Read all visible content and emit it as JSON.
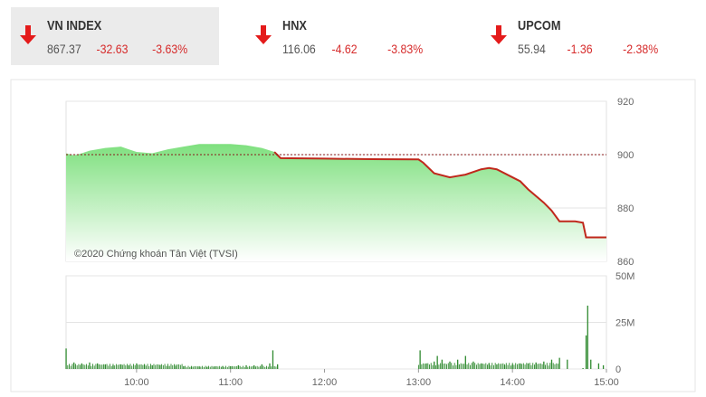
{
  "indices": [
    {
      "name": "VN INDEX",
      "value": "867.37",
      "change": "-32.63",
      "percent": "-3.63%",
      "direction": "down"
    },
    {
      "name": "HNX",
      "value": "116.06",
      "change": "-4.62",
      "percent": "-3.83%",
      "direction": "down"
    },
    {
      "name": "UPCOM",
      "value": "55.94",
      "change": "-1.36",
      "percent": "-2.38%",
      "direction": "down"
    }
  ],
  "colors": {
    "down": "#e41b1b",
    "area": "#7fe07f",
    "line": "#c0281c",
    "volume": "#2f8a2f"
  },
  "chart_data": {
    "type": "area",
    "watermark": "©2020 Chứng khoán Tân Việt (TVSI)",
    "reference": 900,
    "price": {
      "ylim": [
        860,
        920
      ],
      "yticks": [
        "920",
        "900",
        "880",
        "860"
      ],
      "x": [
        "9:15",
        "9:20",
        "9:25",
        "9:30",
        "9:40",
        "9:50",
        "9:55",
        "10:00",
        "10:10",
        "10:20",
        "10:30",
        "10:40",
        "10:50",
        "11:00",
        "11:10",
        "11:20",
        "11:28",
        "11:32",
        "12:00",
        "12:30",
        "13:00",
        "13:03",
        "13:10",
        "13:20",
        "13:30",
        "13:40",
        "13:45",
        "13:50",
        "14:00",
        "14:05",
        "14:10",
        "14:20",
        "14:25",
        "14:30",
        "14:40",
        "14:45",
        "14:47",
        "15:00"
      ],
      "y": [
        900.5,
        899.7,
        900.5,
        901.5,
        902.5,
        903,
        902,
        901,
        900.5,
        902,
        903,
        904,
        904,
        904,
        903.5,
        902.5,
        901,
        898.7,
        898.5,
        898.3,
        898.2,
        897,
        893,
        891.5,
        892.5,
        894.5,
        895,
        894.5,
        891.5,
        890,
        887,
        882,
        879,
        875,
        875,
        874.5,
        869,
        869
      ]
    },
    "volume": {
      "ylim": [
        0,
        50
      ],
      "yticks": [
        "50M",
        "25M",
        "0"
      ],
      "unit": "M",
      "x": [
        "9:15",
        "9:20",
        "9:25",
        "9:30",
        "9:35",
        "9:40",
        "9:45",
        "9:50",
        "9:55",
        "10:00",
        "10:05",
        "10:10",
        "10:15",
        "10:20",
        "10:25",
        "10:30",
        "10:35",
        "10:40",
        "10:45",
        "10:50",
        "10:55",
        "11:00",
        "11:05",
        "11:10",
        "11:15",
        "11:20",
        "11:25",
        "11:27",
        "11:30",
        "13:01",
        "13:05",
        "13:10",
        "13:12",
        "13:15",
        "13:20",
        "13:25",
        "13:30",
        "13:35",
        "13:40",
        "13:45",
        "13:50",
        "13:55",
        "14:00",
        "14:05",
        "14:10",
        "14:15",
        "14:20",
        "14:25",
        "14:30",
        "14:35",
        "14:45",
        "14:47",
        "14:48",
        "14:50",
        "14:55",
        "14:58"
      ],
      "y": [
        11,
        3.5,
        3,
        3.5,
        3,
        2.5,
        2,
        2.5,
        2,
        3,
        2.5,
        2,
        2,
        1.5,
        1.5,
        1.5,
        1.2,
        1.2,
        1.2,
        1.2,
        1.5,
        1.5,
        2,
        2,
        2,
        2.5,
        3,
        10,
        2.5,
        10,
        3,
        4,
        7,
        5,
        4,
        5,
        7,
        4,
        3,
        3,
        2.5,
        2,
        2.5,
        3,
        3,
        3.5,
        4,
        5,
        6,
        5,
        0.5,
        18,
        34,
        5,
        3,
        2
      ]
    },
    "xticks": [
      "10:00",
      "11:00",
      "12:00",
      "13:00",
      "14:00",
      "15:00"
    ]
  }
}
